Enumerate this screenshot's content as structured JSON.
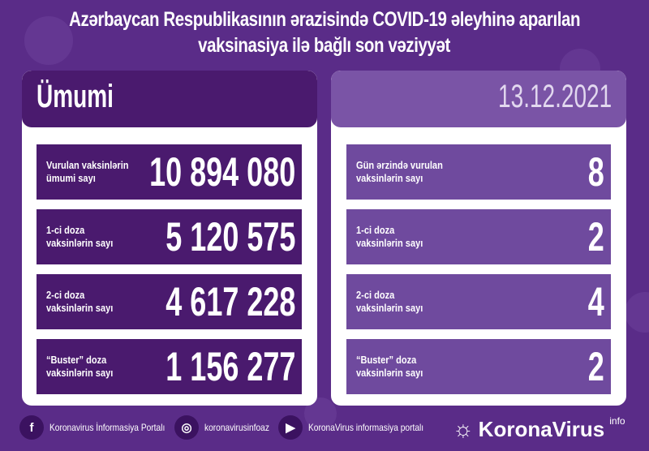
{
  "title": {
    "line1": "Azərbaycan Respublikasının ərazisində COVID-19 əleyhinə aparılan",
    "line2": "vaksinasiya ilə bağlı son vəziyyət"
  },
  "left": {
    "heading": "Ümumi",
    "rows": [
      {
        "label1": "Vurulan vaksinlərin",
        "label2": "ümumi sayı",
        "value": "10 894 080"
      },
      {
        "label1": "1-ci doza",
        "label2": "vaksinlərin sayı",
        "value": "5 120 575"
      },
      {
        "label1": "2-ci doza",
        "label2": "vaksinlərin sayı",
        "value": "4 617 228"
      },
      {
        "label1": "“Buster” doza",
        "label2": "vaksinlərin sayı",
        "value": "1 156 277"
      }
    ]
  },
  "right": {
    "date": "13.12.2021",
    "rows": [
      {
        "label1": "Gün ərzində vurulan",
        "label2": "vaksinlərin sayı",
        "value": "8"
      },
      {
        "label1": "1-ci doza",
        "label2": "vaksinlərin sayı",
        "value": "2"
      },
      {
        "label1": "2-ci doza",
        "label2": "vaksinlərin sayı",
        "value": "4"
      },
      {
        "label1": "“Buster” doza",
        "label2": "vaksinlərin sayı",
        "value": "2"
      }
    ]
  },
  "footer": {
    "facebook": "Koronavirus İnformasiya Portalı",
    "instagram": "koronavirusinfoaz",
    "youtube": "KoronaVirus informasiya portalı",
    "brand": "KoronaVirus",
    "brand_sup": "info"
  },
  "colors": {
    "background": "#5a2c88",
    "left_dark": "#4a1a6e",
    "right_light": "#7a54a6",
    "right_row": "#6f4a9e"
  }
}
